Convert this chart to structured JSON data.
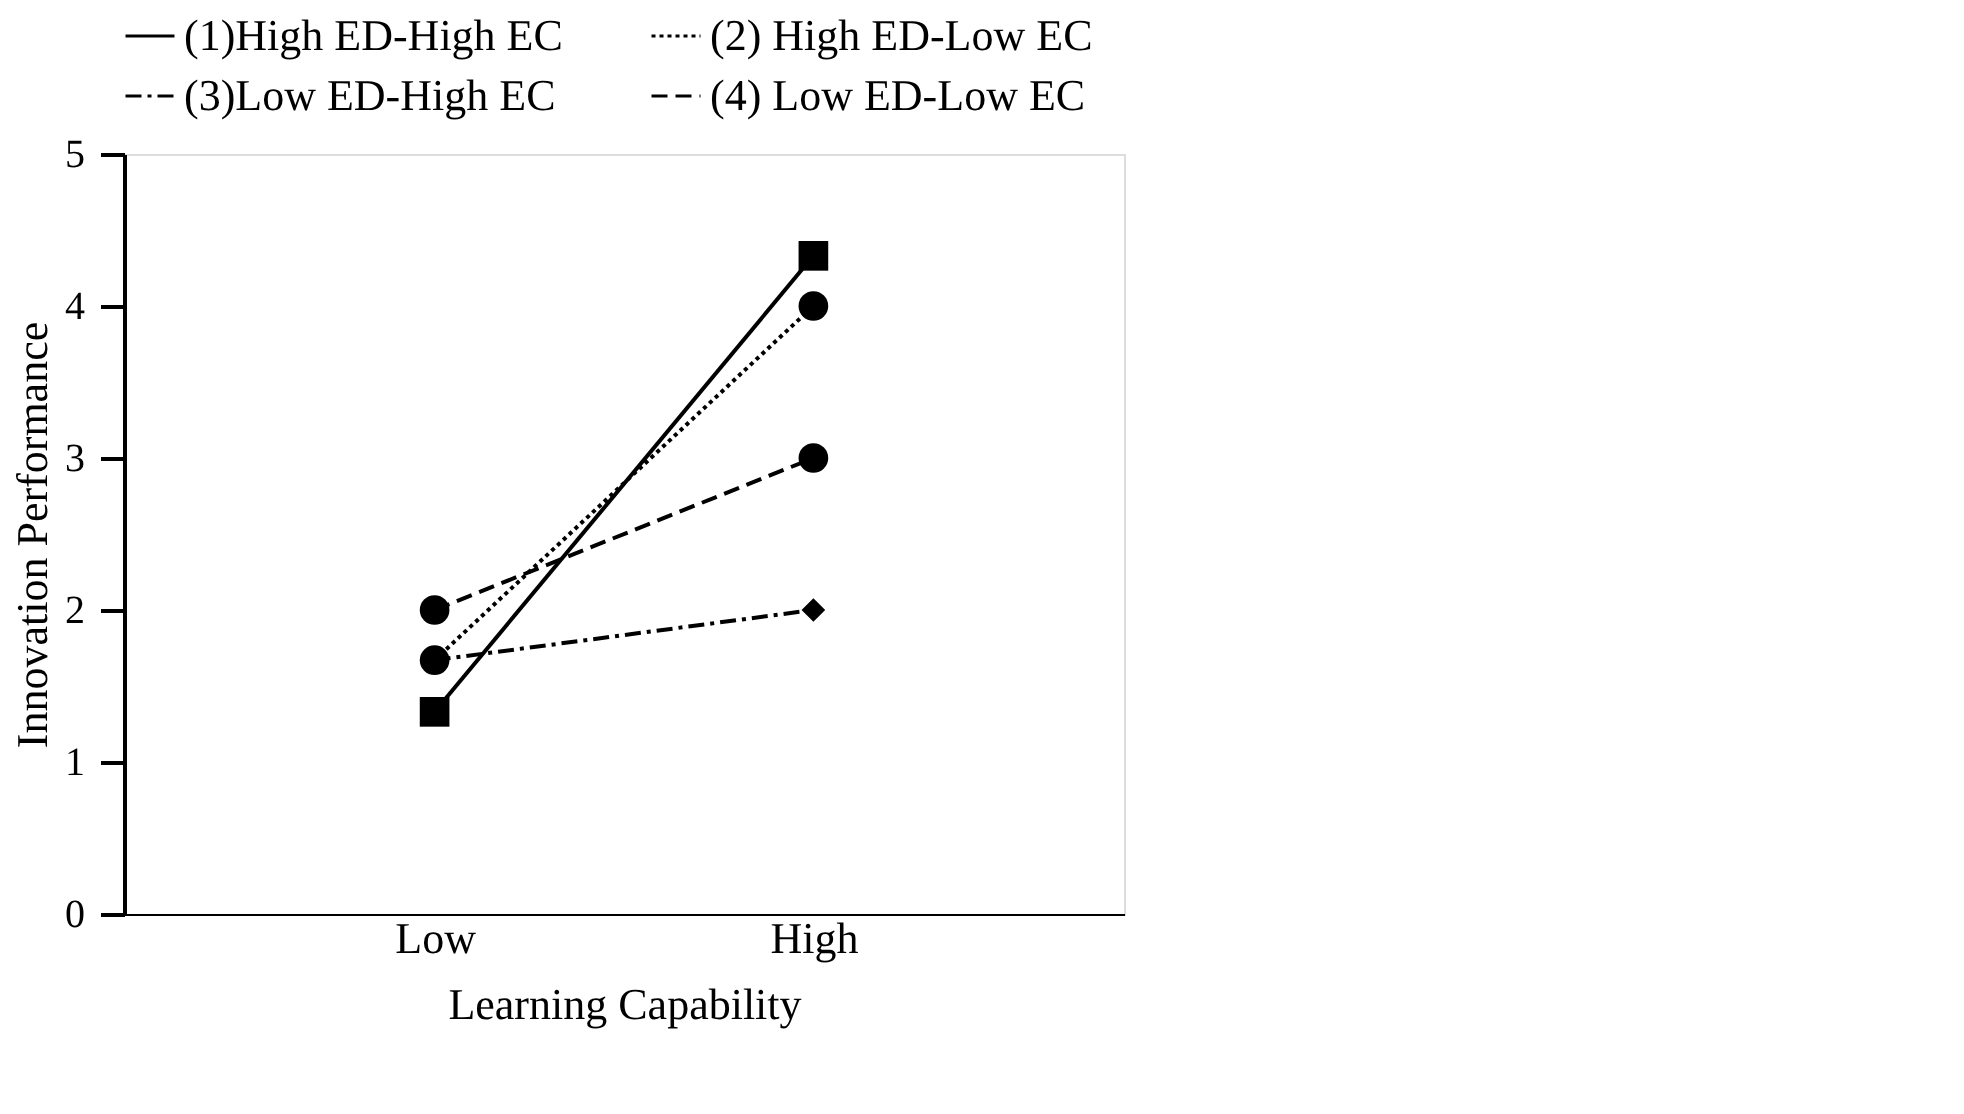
{
  "chart_data": {
    "type": "line",
    "xlabel": "Learning Capability",
    "ylabel": "Innovation Performance",
    "categories": [
      "Low",
      "High"
    ],
    "ylim": [
      0,
      5
    ],
    "yticks": [
      0,
      1,
      2,
      3,
      4,
      5
    ],
    "legend": "top",
    "grid": false,
    "series": [
      {
        "name": "(1)High ED-High EC",
        "color": "#000000",
        "values": [
          1.33,
          4.33
        ],
        "marker": "square",
        "line_style": "solid"
      },
      {
        "name": "(2) High ED-Low EC",
        "color": "#000000",
        "values": [
          1.67,
          4.0
        ],
        "marker": "circle",
        "line_style": "dotted"
      },
      {
        "name": "(3)Low ED-High EC",
        "color": "#000000",
        "values": [
          1.67,
          2.0
        ],
        "marker": "diamond",
        "line_style": "dashdot"
      },
      {
        "name": "(4) Low ED-Low EC",
        "color": "#000000",
        "values": [
          2.0,
          3.0
        ],
        "marker": "circle",
        "line_style": "dashed"
      }
    ]
  }
}
